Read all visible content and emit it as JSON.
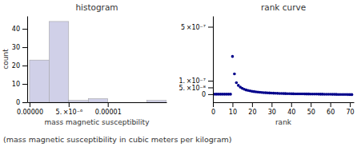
{
  "chart_data": [
    {
      "type": "histogram",
      "title": "histogram",
      "x_label": "mass magnetic susceptibility",
      "y_label": "count",
      "bins": [
        0.0,
        2.5e-06,
        5e-06,
        7.5e-06,
        1e-05,
        1.25e-05,
        1.5e-05,
        1.75e-05
      ],
      "values": [
        23,
        44,
        1,
        2,
        0,
        0,
        1
      ],
      "color": "#d0d0e8",
      "xlim": [
        -3e-07,
        1.75e-05
      ],
      "xticks": [
        {
          "value": 0,
          "label": "0.00000"
        },
        {
          "value": 5e-06,
          "label": "5. ×10⁻⁶"
        },
        {
          "value": 1e-05,
          "label": "0.00001"
        }
      ],
      "ylim": [
        0,
        47
      ],
      "yticks": [
        0,
        10,
        20,
        30,
        40
      ],
      "grid": false,
      "annotations": [
        "(mass magnetic susceptibility in cubic meters per kilogram)"
      ]
    },
    {
      "type": "scatter",
      "title": "rank curve",
      "x_label": "rank",
      "x": [
        1,
        2,
        3,
        4,
        5,
        6,
        7,
        8,
        9,
        10,
        11,
        12,
        13,
        14,
        15,
        16,
        17,
        18,
        19,
        20,
        21,
        22,
        23,
        24,
        25,
        26,
        27,
        28,
        29,
        30,
        31,
        32,
        33,
        34,
        35,
        36,
        37,
        38,
        39,
        40,
        41,
        42,
        43,
        44,
        45,
        46,
        47,
        48,
        49,
        50,
        51,
        52,
        53,
        54,
        55,
        56,
        57,
        58,
        59,
        60,
        61,
        62,
        63,
        64,
        65,
        66,
        67,
        68,
        69,
        70,
        71
      ],
      "values": [
        0,
        0,
        0,
        0,
        0,
        0,
        0,
        0,
        0,
        2.8e-07,
        1.5e-07,
        8.5e-08,
        6.5e-08,
        5.2e-08,
        4.3e-08,
        3.6e-08,
        3.1e-08,
        2.7e-08,
        2.4e-08,
        2.1e-08,
        1.9e-08,
        1.7e-08,
        1.55e-08,
        1.4e-08,
        1.27e-08,
        1.15e-08,
        1.05e-08,
        9.5e-09,
        8.7e-09,
        7.9e-09,
        7.2e-09,
        6.6e-09,
        6e-09,
        5.5e-09,
        5e-09,
        4.6e-09,
        4.2e-09,
        3.8e-09,
        3.5e-09,
        3.2e-09,
        2.9e-09,
        2.6e-09,
        2.4e-09,
        2.2e-09,
        2e-09,
        1.8e-09,
        1.6e-09,
        1.4e-09,
        1.2e-09,
        1e-09,
        8e-10,
        6e-10,
        4e-10,
        2e-10,
        0.0,
        -2e-10,
        -4e-10,
        -6e-10,
        -8e-10,
        -1e-09,
        -1.2e-09,
        -1.4e-09,
        -1.6e-09,
        -1.8e-09,
        -2e-09,
        -2.2e-09,
        -2.4e-09,
        -2.6e-09,
        -2.8e-09,
        -3e-09,
        -3.2e-09
      ],
      "color": "#00008b",
      "xlim": [
        0,
        72
      ],
      "xticks": [
        0,
        10,
        20,
        30,
        40,
        50,
        60,
        70
      ],
      "ylim": [
        -6e-08,
        5.8e-07
      ],
      "yticks": [
        0,
        {
          "value": 5e-08,
          "label": "5. ×10⁻⁸"
        },
        {
          "value": 1e-07,
          "label": "1. ×10⁻⁷"
        },
        {
          "value": 5e-07,
          "label": "5 ×10⁻⁷"
        }
      ],
      "grid": false
    }
  ]
}
